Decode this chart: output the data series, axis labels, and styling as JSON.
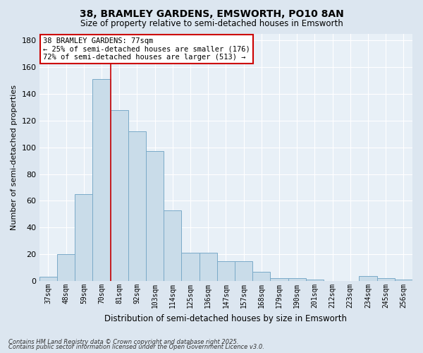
{
  "title": "38, BRAMLEY GARDENS, EMSWORTH, PO10 8AN",
  "subtitle": "Size of property relative to semi-detached houses in Emsworth",
  "xlabel": "Distribution of semi-detached houses by size in Emsworth",
  "ylabel": "Number of semi-detached properties",
  "categories": [
    "37sqm",
    "48sqm",
    "59sqm",
    "70sqm",
    "81sqm",
    "92sqm",
    "103sqm",
    "114sqm",
    "125sqm",
    "136sqm",
    "147sqm",
    "157sqm",
    "168sqm",
    "179sqm",
    "190sqm",
    "201sqm",
    "212sqm",
    "223sqm",
    "234sqm",
    "245sqm",
    "256sqm"
  ],
  "values": [
    3,
    20,
    65,
    151,
    128,
    112,
    97,
    53,
    21,
    21,
    15,
    15,
    7,
    2,
    2,
    1,
    0,
    0,
    4,
    2,
    1
  ],
  "bar_color": "#c9dce9",
  "bar_edge_color": "#7aaac8",
  "vline_color": "#cc0000",
  "vline_x": 3.5,
  "annotation_title": "38 BRAMLEY GARDENS: 77sqm",
  "annotation_line1": "← 25% of semi-detached houses are smaller (176)",
  "annotation_line2": "72% of semi-detached houses are larger (513) →",
  "annotation_box_facecolor": "white",
  "annotation_box_edgecolor": "#cc0000",
  "ylim": [
    0,
    185
  ],
  "yticks": [
    0,
    20,
    40,
    60,
    80,
    100,
    120,
    140,
    160,
    180
  ],
  "footnote1": "Contains HM Land Registry data © Crown copyright and database right 2025.",
  "footnote2": "Contains public sector information licensed under the Open Government Licence v3.0.",
  "fig_bg_color": "#dce6f0",
  "plot_bg_color": "#e8f0f7",
  "grid_color": "#ffffff",
  "title_fontsize": 10,
  "subtitle_fontsize": 8.5,
  "ylabel_fontsize": 8,
  "xlabel_fontsize": 8.5,
  "tick_fontsize": 7
}
